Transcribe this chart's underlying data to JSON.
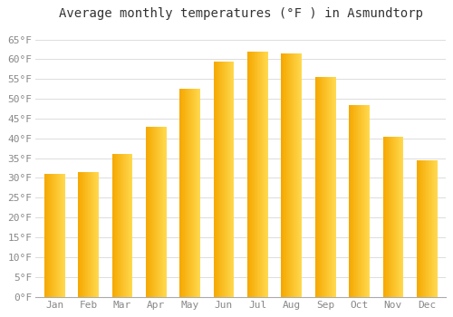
{
  "title": "Average monthly temperatures (°F ) in Asmundtorp",
  "months": [
    "Jan",
    "Feb",
    "Mar",
    "Apr",
    "May",
    "Jun",
    "Jul",
    "Aug",
    "Sep",
    "Oct",
    "Nov",
    "Dec"
  ],
  "values": [
    31,
    31.5,
    36,
    43,
    52.5,
    59.5,
    62,
    61.5,
    55.5,
    48.5,
    40.5,
    34.5
  ],
  "bar_color_left": "#F5A800",
  "bar_color_right": "#FFD84D",
  "background_color": "#FFFFFF",
  "grid_color": "#DDDDDD",
  "ylim": [
    0,
    68
  ],
  "yticks": [
    0,
    5,
    10,
    15,
    20,
    25,
    30,
    35,
    40,
    45,
    50,
    55,
    60,
    65
  ],
  "ytick_labels": [
    "0°F",
    "5°F",
    "10°F",
    "15°F",
    "20°F",
    "25°F",
    "30°F",
    "35°F",
    "40°F",
    "45°F",
    "50°F",
    "55°F",
    "60°F",
    "65°F"
  ],
  "title_fontsize": 10,
  "tick_fontsize": 8,
  "font_family": "monospace"
}
